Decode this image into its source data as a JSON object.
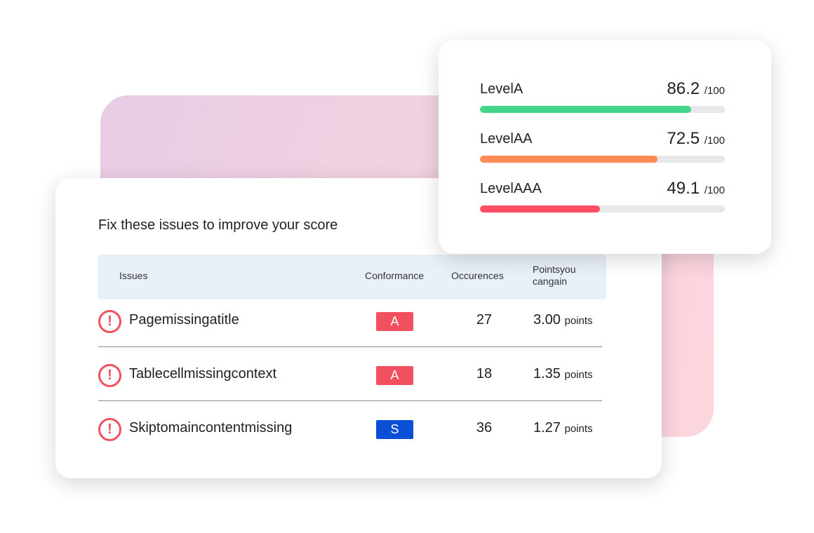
{
  "heading": "Fix these issues to improve your score",
  "columns": {
    "issues": "Issues",
    "conformance": "Conformance",
    "occurrences": "Occurences",
    "points": "Pointsyou cangain"
  },
  "issues": [
    {
      "name": "Pagemissingatitle",
      "conformance": "A",
      "conformance_color": "#f2505f",
      "occurrences": "27",
      "points": "3.00",
      "unit": "points"
    },
    {
      "name": "Tablecellmissingcontext",
      "conformance": "A",
      "conformance_color": "#f2505f",
      "occurrences": "18",
      "points": "1.35",
      "unit": "points"
    },
    {
      "name": "Skiptomaincontentmissing",
      "conformance": "S",
      "conformance_color": "#0b4fd6",
      "occurrences": "36",
      "points": "1.27",
      "unit": "points"
    }
  ],
  "levels": [
    {
      "label": "LevelA",
      "score": "86.2",
      "max": "/100",
      "percent": 86.2,
      "color": "#42d68a"
    },
    {
      "label": "LevelAA",
      "score": "72.5",
      "max": "/100",
      "percent": 72.5,
      "color": "#ff8a55"
    },
    {
      "label": "LevelAAA",
      "score": "49.1",
      "max": "/100",
      "percent": 49.1,
      "color": "#ff4d63"
    }
  ]
}
